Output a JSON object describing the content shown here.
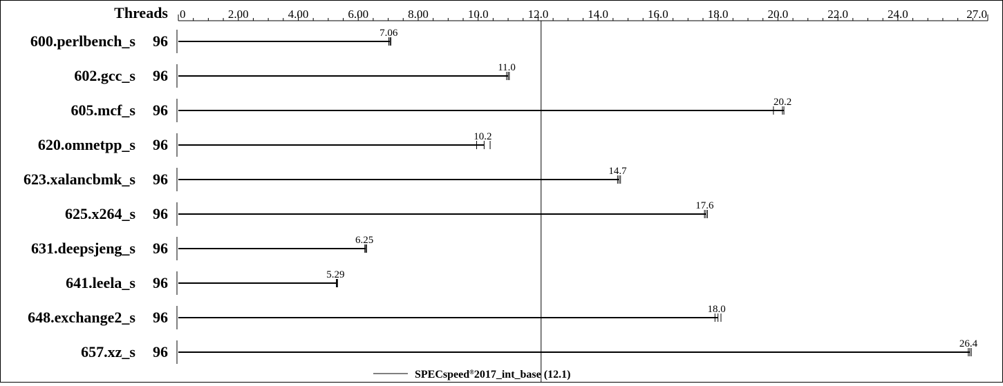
{
  "chart_data": {
    "type": "bar",
    "orientation": "horizontal",
    "threads_header": "Threads",
    "categories": [
      "600.perlbench_s",
      "602.gcc_s",
      "605.mcf_s",
      "620.omnetpp_s",
      "623.xalancbmk_s",
      "625.x264_s",
      "631.deepsjeng_s",
      "641.leela_s",
      "648.exchange2_s",
      "657.xz_s"
    ],
    "threads": [
      "96",
      "96",
      "96",
      "96",
      "96",
      "96",
      "96",
      "96",
      "96",
      "96"
    ],
    "values": [
      7.06,
      11.0,
      20.2,
      10.2,
      14.7,
      17.6,
      6.25,
      5.29,
      18.0,
      26.4
    ],
    "value_labels": [
      "7.06",
      "11.0",
      "20.2",
      "10.2",
      "14.7",
      "17.6",
      "6.25",
      "5.29",
      "18.0",
      "26.4"
    ],
    "run_marks": [
      [
        7.02,
        7.06,
        7.09
      ],
      [
        10.95,
        11.0,
        11.04
      ],
      [
        19.85,
        20.2,
        20.15
      ],
      [
        9.95,
        10.2,
        10.4
      ],
      [
        14.65,
        14.7,
        14.75
      ],
      [
        17.55,
        17.6,
        17.65
      ],
      [
        6.22,
        6.25,
        6.28
      ],
      [
        5.27,
        5.29,
        5.31
      ],
      [
        17.9,
        18.0,
        18.1
      ],
      [
        26.35,
        26.4,
        26.45
      ]
    ],
    "xlim": [
      0,
      27.0
    ],
    "tick_values": [
      0,
      2.0,
      4.0,
      6.0,
      8.0,
      10.0,
      12.0,
      14.0,
      16.0,
      18.0,
      20.0,
      22.0,
      24.0,
      27.0
    ],
    "tick_labels": [
      "0",
      "2.00",
      "4.00",
      "6.00",
      "8.00",
      "10.0",
      "12.0",
      "14.0",
      "16.0",
      "18.0",
      "20.0",
      "22.0",
      "24.0",
      "27.0"
    ],
    "minor_tick_step": 0.5,
    "baseline": {
      "value": 12.1,
      "label_prefix": "SPECspeed",
      "label_reg": "®",
      "label_suffix": "2017_int_base (12.1)"
    }
  }
}
